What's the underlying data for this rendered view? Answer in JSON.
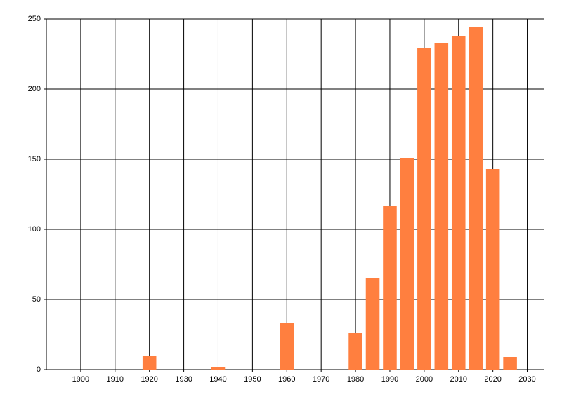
{
  "chart_data": {
    "type": "bar",
    "x": [
      1920,
      1940,
      1960,
      1980,
      1985,
      1990,
      1995,
      2000,
      2005,
      2010,
      2015,
      2020,
      2025
    ],
    "values": [
      10,
      2,
      33,
      26,
      65,
      117,
      151,
      229,
      233,
      238,
      244,
      143,
      9
    ],
    "color": "#ff7f3f",
    "xlim": [
      1890,
      2035
    ],
    "xticks": [
      1900,
      1910,
      1920,
      1930,
      1940,
      1950,
      1960,
      1970,
      1980,
      1990,
      2000,
      2010,
      2020,
      2030
    ],
    "ylim": [
      0,
      250
    ],
    "yticks": [
      0,
      50,
      100,
      150,
      200,
      250
    ],
    "grid": true
  }
}
